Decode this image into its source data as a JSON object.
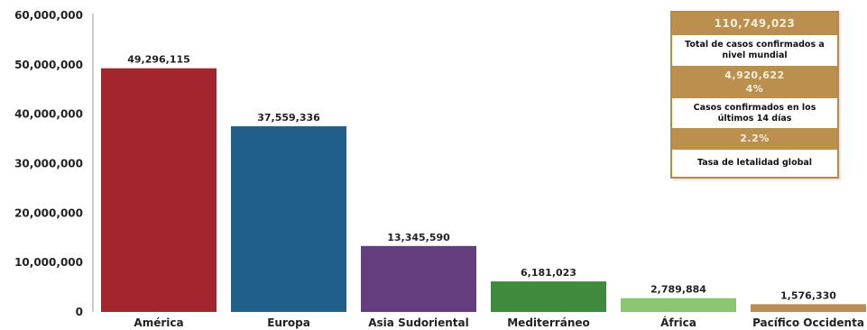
{
  "chart_data": {
    "type": "bar",
    "categories": [
      "América",
      "Europa",
      "Asia Sudoriental",
      "Mediterráneo",
      "África",
      "Pacífico Occidenta"
    ],
    "values": [
      49296115,
      37559336,
      13345590,
      6181023,
      2789884,
      1576330
    ],
    "value_labels": [
      "49,296,115",
      "37,559,336",
      "13,345,590",
      "6,181,023",
      "2,789,884",
      "1,576,330"
    ],
    "colors": [
      "#a3262f",
      "#1f5f88",
      "#643d7f",
      "#3f8a3c",
      "#8bc671",
      "#ba8e52"
    ],
    "ylim": [
      0,
      60000000
    ],
    "yticks": [
      0,
      10000000,
      20000000,
      30000000,
      40000000,
      50000000,
      60000000
    ],
    "ytick_labels": [
      "0",
      "10,000,000",
      "20,000,000",
      "30,000,000",
      "40,000,000",
      "50,000,000",
      "60,000,000"
    ],
    "grid": false,
    "title": "",
    "xlabel": "",
    "ylabel": ""
  },
  "summary": {
    "total_value": "110,749,023",
    "total_label": "Total de casos confirmados a nivel mundial",
    "recent_value": "4,920,622",
    "recent_pct": "4%",
    "recent_label": "Casos confirmados en los últimos 14 días",
    "letality_value": "2.2%",
    "letality_label": "Tasa de letalidad global",
    "accent_color": "#bb8f4e"
  }
}
